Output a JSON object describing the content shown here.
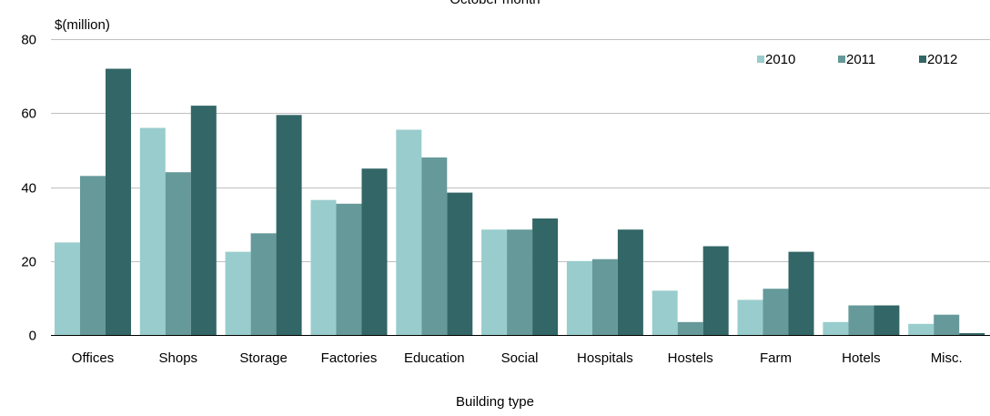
{
  "chart_data": {
    "type": "bar",
    "title": "October month",
    "xlabel": "Building type",
    "ylabel": "$(million)",
    "ylim": [
      0,
      80
    ],
    "yticks": [
      0,
      20,
      40,
      60,
      80
    ],
    "grid": true,
    "legend_position": "top-right",
    "categories": [
      "Offices",
      "Shops",
      "Storage",
      "Factories",
      "Education",
      "Social",
      "Hospitals",
      "Hostels",
      "Farm",
      "Hotels",
      "Misc."
    ],
    "series": [
      {
        "name": "2010",
        "color": "#99cccc",
        "values": [
          25,
          56,
          22.5,
          36.5,
          55.5,
          28.5,
          20,
          12,
          9.5,
          3.5,
          3
        ]
      },
      {
        "name": "2011",
        "color": "#669999",
        "values": [
          43,
          44,
          27.5,
          35.5,
          48,
          28.5,
          20.5,
          3.5,
          12.5,
          8,
          5.5
        ]
      },
      {
        "name": "2012",
        "color": "#336666",
        "values": [
          72,
          62,
          59.5,
          45,
          38.5,
          31.5,
          28.5,
          24,
          22.5,
          8,
          0.5
        ]
      }
    ]
  }
}
